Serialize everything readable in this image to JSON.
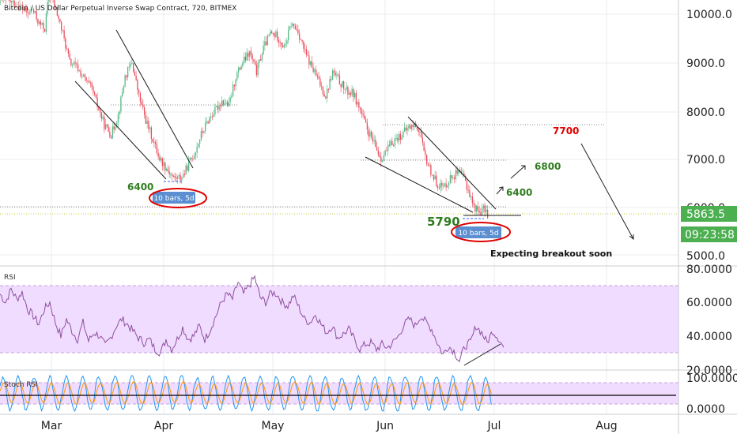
{
  "header": {
    "title": "Bitcoin / US Dollar Perpetual Inverse Swap Contract, 720, BITMEX"
  },
  "colors": {
    "up": "#53b987",
    "down": "#eb4d5c",
    "rsi": "#8e4f9e",
    "band": "#f0dcff",
    "stoch_k": "#2196f3",
    "stoch_d": "#ff9800",
    "price_badge": "#4caf50",
    "red_text": "#e00000",
    "green_text": "#2f7d1e"
  },
  "price_badge": {
    "price": "5863.5",
    "countdown": "09:23:58"
  },
  "annotations": {
    "l6400_left": "6400",
    "bars_left": "10 bars, 5d",
    "l5790": "5790",
    "bars_right": "10 bars, 5d",
    "l6400_right": "6400",
    "l6800": "6800",
    "l7700": "7700",
    "breakout": "Expecting breakout soon"
  },
  "panels": {
    "rsi_label": "RSI",
    "stoch_label": "Stoch RSI"
  },
  "chart_data": [
    {
      "type": "candlestick",
      "title": "Bitcoin / US Dollar Perpetual Inverse Swap Contract, 720, BITMEX",
      "x_ticks": [
        "Mar",
        "Apr",
        "May",
        "Jun",
        "Jul",
        "Aug"
      ],
      "y_ticks": [
        "5000.0",
        "6000.0",
        "7000.0",
        "8000.0",
        "9000.0",
        "10000.0"
      ],
      "ylim": [
        4750,
        10300
      ],
      "close_anchors": [
        [
          0,
          10300
        ],
        [
          8,
          10250
        ],
        [
          15,
          10150
        ],
        [
          20,
          10000
        ],
        [
          23,
          10100
        ],
        [
          28,
          9800
        ],
        [
          32,
          9700
        ],
        [
          35,
          10450
        ],
        [
          40,
          10100
        ],
        [
          45,
          9600
        ],
        [
          50,
          9000
        ],
        [
          55,
          8900
        ],
        [
          62,
          8600
        ],
        [
          66,
          8450
        ],
        [
          70,
          8100
        ],
        [
          75,
          7700
        ],
        [
          80,
          7500
        ],
        [
          85,
          7900
        ],
        [
          90,
          8700
        ],
        [
          95,
          9000
        ],
        [
          100,
          8300
        ],
        [
          105,
          7800
        ],
        [
          110,
          7400
        ],
        [
          115,
          7000
        ],
        [
          120,
          6800
        ],
        [
          125,
          6600
        ],
        [
          130,
          6600
        ],
        [
          133,
          6700
        ],
        [
          136,
          6900
        ],
        [
          140,
          7100
        ],
        [
          145,
          7500
        ],
        [
          150,
          7800
        ],
        [
          155,
          8000
        ],
        [
          160,
          8200
        ],
        [
          165,
          8100
        ],
        [
          170,
          8700
        ],
        [
          175,
          9000
        ],
        [
          180,
          9200
        ],
        [
          185,
          8800
        ],
        [
          190,
          9300
        ],
        [
          195,
          9600
        ],
        [
          200,
          9550
        ],
        [
          205,
          9300
        ],
        [
          210,
          9800
        ],
        [
          215,
          9650
        ],
        [
          220,
          9200
        ],
        [
          225,
          8900
        ],
        [
          230,
          8600
        ],
        [
          235,
          8300
        ],
        [
          240,
          8800
        ],
        [
          245,
          8600
        ],
        [
          250,
          8400
        ],
        [
          255,
          8350
        ],
        [
          260,
          8000
        ],
        [
          265,
          7600
        ],
        [
          270,
          7300
        ],
        [
          275,
          7000
        ],
        [
          280,
          7200
        ],
        [
          285,
          7400
        ],
        [
          290,
          7500
        ],
        [
          295,
          7650
        ],
        [
          300,
          7700
        ],
        [
          303,
          7550
        ],
        [
          306,
          7100
        ],
        [
          310,
          6800
        ],
        [
          315,
          6500
        ],
        [
          320,
          6400
        ],
        [
          325,
          6600
        ],
        [
          330,
          6700
        ],
        [
          335,
          6600
        ],
        [
          338,
          6350
        ],
        [
          342,
          6000
        ],
        [
          346,
          5900
        ],
        [
          350,
          5950
        ],
        [
          352,
          5850
        ]
      ],
      "last_price": 5863.5
    },
    {
      "type": "line",
      "title": "RSI",
      "y_ticks": [
        "20.0000",
        "40.0000",
        "60.0000",
        "80.0000"
      ],
      "ylim": [
        20,
        80
      ],
      "bands": [
        30,
        70
      ],
      "anchors": [
        [
          0,
          65
        ],
        [
          4,
          60
        ],
        [
          8,
          68
        ],
        [
          12,
          62
        ],
        [
          16,
          66
        ],
        [
          20,
          56
        ],
        [
          24,
          52
        ],
        [
          28,
          47
        ],
        [
          32,
          56
        ],
        [
          36,
          60
        ],
        [
          40,
          48
        ],
        [
          44,
          40
        ],
        [
          48,
          50
        ],
        [
          52,
          43
        ],
        [
          56,
          38
        ],
        [
          60,
          48
        ],
        [
          64,
          37
        ],
        [
          68,
          42
        ],
        [
          72,
          40
        ],
        [
          76,
          34
        ],
        [
          80,
          39
        ],
        [
          84,
          46
        ],
        [
          88,
          50
        ],
        [
          92,
          47
        ],
        [
          96,
          43
        ],
        [
          100,
          39
        ],
        [
          104,
          36
        ],
        [
          108,
          38
        ],
        [
          112,
          32
        ],
        [
          116,
          30
        ],
        [
          120,
          38
        ],
        [
          124,
          32
        ],
        [
          128,
          38
        ],
        [
          132,
          45
        ],
        [
          136,
          38
        ],
        [
          140,
          40
        ],
        [
          144,
          46
        ],
        [
          148,
          38
        ],
        [
          152,
          44
        ],
        [
          156,
          52
        ],
        [
          160,
          60
        ],
        [
          164,
          65
        ],
        [
          168,
          62
        ],
        [
          172,
          72
        ],
        [
          176,
          65
        ],
        [
          180,
          70
        ],
        [
          184,
          75
        ],
        [
          188,
          63
        ],
        [
          192,
          60
        ],
        [
          196,
          66
        ],
        [
          200,
          65
        ],
        [
          204,
          60
        ],
        [
          208,
          58
        ],
        [
          212,
          64
        ],
        [
          216,
          57
        ],
        [
          220,
          50
        ],
        [
          224,
          48
        ],
        [
          228,
          53
        ],
        [
          232,
          47
        ],
        [
          236,
          42
        ],
        [
          240,
          46
        ],
        [
          244,
          39
        ],
        [
          248,
          41
        ],
        [
          252,
          44
        ],
        [
          256,
          38
        ],
        [
          260,
          32
        ],
        [
          264,
          35
        ],
        [
          268,
          36
        ],
        [
          272,
          32
        ],
        [
          276,
          35
        ],
        [
          280,
          33
        ],
        [
          284,
          36
        ],
        [
          288,
          40
        ],
        [
          292,
          47
        ],
        [
          296,
          50
        ],
        [
          300,
          46
        ],
        [
          304,
          52
        ],
        [
          308,
          48
        ],
        [
          312,
          44
        ],
        [
          316,
          36
        ],
        [
          320,
          29
        ],
        [
          324,
          34
        ],
        [
          328,
          31
        ],
        [
          332,
          25
        ],
        [
          336,
          34
        ],
        [
          340,
          36
        ],
        [
          344,
          46
        ],
        [
          348,
          42
        ],
        [
          352,
          36
        ],
        [
          356,
          43
        ],
        [
          360,
          39
        ],
        [
          364,
          33
        ]
      ]
    },
    {
      "type": "line",
      "title": "Stoch RSI",
      "y_ticks": [
        "0.0000",
        "100.0000"
      ],
      "ylim": [
        0,
        100
      ],
      "bands": [
        20,
        80
      ],
      "centerline": 50
    }
  ]
}
